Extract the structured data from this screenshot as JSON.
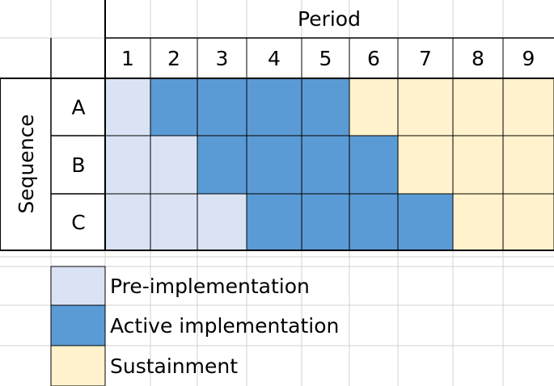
{
  "header": {
    "title": "Period",
    "periods": [
      "1",
      "2",
      "3",
      "4",
      "5",
      "6",
      "7",
      "8",
      "9"
    ]
  },
  "row_header": "Sequence",
  "legend": [
    {
      "label": "Pre-implementation",
      "color": "#dae3f3"
    },
    {
      "label": "Active implementation",
      "color": "#5b9bd5"
    },
    {
      "label": "Sustainment",
      "color": "#fff2cc"
    }
  ],
  "rows": [
    {
      "label": "A",
      "cells": [
        "#dae3f3",
        "#5b9bd5",
        "#5b9bd5",
        "#5b9bd5",
        "#5b9bd5",
        "#fff2cc",
        "#fff2cc",
        "#fff2cc",
        "#fff2cc"
      ]
    },
    {
      "label": "B",
      "cells": [
        "#dae3f3",
        "#dae3f3",
        "#5b9bd5",
        "#5b9bd5",
        "#5b9bd5",
        "#5b9bd5",
        "#fff2cc",
        "#fff2cc",
        "#fff2cc"
      ]
    },
    {
      "label": "C",
      "cells": [
        "#dae3f3",
        "#dae3f3",
        "#dae3f3",
        "#5b9bd5",
        "#5b9bd5",
        "#5b9bd5",
        "#5b9bd5",
        "#fff2cc",
        "#fff2cc"
      ]
    }
  ]
}
